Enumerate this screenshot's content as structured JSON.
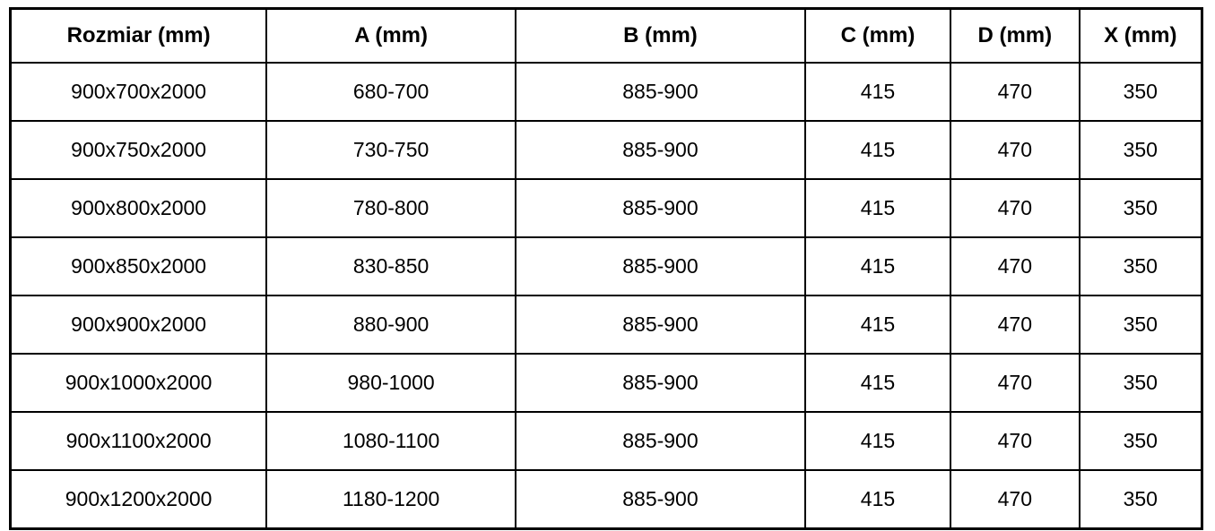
{
  "table": {
    "columns": [
      "Rozmiar (mm)",
      "A (mm)",
      "B (mm)",
      "C (mm)",
      "D (mm)",
      "X (mm)"
    ],
    "rows": [
      [
        "900x700x2000",
        "680-700",
        "885-900",
        "415",
        "470",
        "350"
      ],
      [
        "900x750x2000",
        "730-750",
        "885-900",
        "415",
        "470",
        "350"
      ],
      [
        "900x800x2000",
        "780-800",
        "885-900",
        "415",
        "470",
        "350"
      ],
      [
        "900x850x2000",
        "830-850",
        "885-900",
        "415",
        "470",
        "350"
      ],
      [
        "900x900x2000",
        "880-900",
        "885-900",
        "415",
        "470",
        "350"
      ],
      [
        "900x1000x2000",
        "980-1000",
        "885-900",
        "415",
        "470",
        "350"
      ],
      [
        "900x1100x2000",
        "1080-1100",
        "885-900",
        "415",
        "470",
        "350"
      ],
      [
        "900x1200x2000",
        "1180-1200",
        "885-900",
        "415",
        "470",
        "350"
      ]
    ]
  },
  "chart_data": {
    "type": "table",
    "title": "",
    "columns": [
      "Rozmiar (mm)",
      "A (mm)",
      "B (mm)",
      "C (mm)",
      "D (mm)",
      "X (mm)"
    ],
    "rows": [
      [
        "900x700x2000",
        "680-700",
        "885-900",
        "415",
        "470",
        "350"
      ],
      [
        "900x750x2000",
        "730-750",
        "885-900",
        "415",
        "470",
        "350"
      ],
      [
        "900x800x2000",
        "780-800",
        "885-900",
        "415",
        "470",
        "350"
      ],
      [
        "900x850x2000",
        "830-850",
        "885-900",
        "415",
        "470",
        "350"
      ],
      [
        "900x900x2000",
        "880-900",
        "885-900",
        "415",
        "470",
        "350"
      ],
      [
        "900x1000x2000",
        "980-1000",
        "885-900",
        "415",
        "470",
        "350"
      ],
      [
        "900x1100x2000",
        "1080-1100",
        "885-900",
        "415",
        "470",
        "350"
      ],
      [
        "900x1200x2000",
        "1180-1200",
        "885-900",
        "415",
        "470",
        "350"
      ]
    ]
  },
  "colors": {
    "border": "#000000",
    "background": "#ffffff",
    "text": "#000000"
  }
}
